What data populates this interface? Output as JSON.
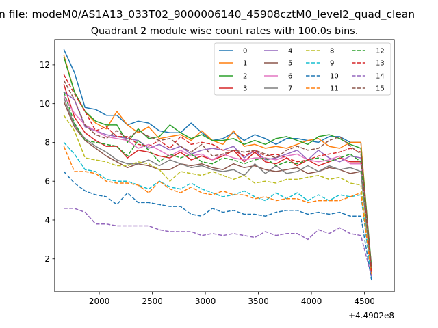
{
  "chart_data": {
    "type": "line",
    "suptitle": "n file: modeM0/AS1A13_033T02_9000006140_45908cztM0_level2_quad_clean",
    "title": "Quadrant 2 module wise count rates with 100.0s bins.",
    "xlabel": "",
    "ylabel": "",
    "offset_label": "+4.4902e8",
    "xlim": [
      1580,
      4780
    ],
    "ylim": [
      0.3,
      13.3
    ],
    "xticks": [
      2000,
      2500,
      3000,
      3500,
      4000,
      4500
    ],
    "yticks": [
      2,
      4,
      6,
      8,
      10,
      12
    ],
    "legend": "top-right",
    "x": [
      1666,
      1766,
      1866,
      1966,
      2066,
      2166,
      2266,
      2366,
      2466,
      2566,
      2666,
      2766,
      2866,
      2966,
      3066,
      3166,
      3266,
      3366,
      3466,
      3566,
      3666,
      3766,
      3866,
      3966,
      4066,
      4166,
      4266,
      4366,
      4466,
      4566
    ],
    "series": [
      {
        "name": "0",
        "color": "#1f77b4",
        "dash": "solid",
        "values": [
          12.8,
          11.6,
          9.8,
          9.7,
          9.4,
          9.4,
          8.9,
          9.1,
          9.0,
          8.6,
          8.5,
          8.5,
          9.0,
          8.5,
          8.1,
          8.2,
          8.5,
          8.1,
          8.4,
          8.2,
          7.9,
          8.2,
          8.2,
          8.1,
          8.0,
          8.3,
          8.3,
          8.0,
          8.0,
          1.0
        ]
      },
      {
        "name": "1",
        "color": "#ff7f0e",
        "dash": "solid",
        "values": [
          12.5,
          10.6,
          9.6,
          9.0,
          8.7,
          9.6,
          8.9,
          8.5,
          8.8,
          8.2,
          8.3,
          8.4,
          8.1,
          8.6,
          8.1,
          7.9,
          8.6,
          7.8,
          7.9,
          7.7,
          7.8,
          7.7,
          7.9,
          8.1,
          8.2,
          7.8,
          7.7,
          8.0,
          8.0,
          1.3
        ]
      },
      {
        "name": "2",
        "color": "#2ca02c",
        "dash": "solid",
        "values": [
          12.4,
          10.6,
          9.6,
          9.1,
          8.9,
          8.9,
          8.0,
          8.7,
          8.2,
          8.3,
          8.9,
          8.5,
          8.2,
          8.4,
          8.1,
          8.1,
          8.2,
          7.9,
          8.1,
          7.9,
          8.2,
          8.3,
          8.1,
          7.9,
          8.3,
          8.4,
          8.2,
          7.9,
          7.7,
          1.6
        ]
      },
      {
        "name": "3",
        "color": "#d62728",
        "dash": "solid",
        "values": [
          11.0,
          9.3,
          8.5,
          8.1,
          7.8,
          7.8,
          7.2,
          7.6,
          7.5,
          7.3,
          7.2,
          7.5,
          7.1,
          7.3,
          7.1,
          7.3,
          7.6,
          7.0,
          7.5,
          7.0,
          6.9,
          7.2,
          6.8,
          7.1,
          6.8,
          7.0,
          7.2,
          7.0,
          7.0,
          1.2
        ]
      },
      {
        "name": "4",
        "color": "#9467bd",
        "dash": "solid",
        "values": [
          10.6,
          10.2,
          8.8,
          8.6,
          8.4,
          8.3,
          8.2,
          8.1,
          7.7,
          7.9,
          7.6,
          7.8,
          7.4,
          7.6,
          7.7,
          7.6,
          7.8,
          7.2,
          7.6,
          7.1,
          7.2,
          7.4,
          7.6,
          7.1,
          7.6,
          7.2,
          7.0,
          7.3,
          7.2,
          1.1
        ]
      },
      {
        "name": "5",
        "color": "#8c564b",
        "dash": "solid",
        "values": [
          10.1,
          8.8,
          8.1,
          7.7,
          7.3,
          7.0,
          6.7,
          6.9,
          6.8,
          6.6,
          6.6,
          6.9,
          6.8,
          6.9,
          6.7,
          6.6,
          6.9,
          6.7,
          6.8,
          6.6,
          6.5,
          6.6,
          6.7,
          6.4,
          6.5,
          6.7,
          6.6,
          6.4,
          6.5,
          1.3
        ]
      },
      {
        "name": "6",
        "color": "#e377c2",
        "dash": "solid",
        "values": [
          10.4,
          9.5,
          8.9,
          8.6,
          8.3,
          8.2,
          8.1,
          7.7,
          7.9,
          7.6,
          7.3,
          7.6,
          7.3,
          7.4,
          7.1,
          7.4,
          7.2,
          7.1,
          7.2,
          7.2,
          7.1,
          7.3,
          7.4,
          7.1,
          7.0,
          7.1,
          7.3,
          6.9,
          6.9,
          1.1
        ]
      },
      {
        "name": "7",
        "color": "#7f7f7f",
        "dash": "solid",
        "values": [
          10.3,
          8.9,
          8.2,
          7.8,
          7.5,
          7.1,
          6.9,
          6.9,
          7.1,
          6.8,
          7.1,
          6.9,
          6.7,
          6.8,
          6.6,
          6.5,
          6.6,
          6.3,
          6.9,
          6.4,
          6.8,
          6.4,
          6.5,
          6.8,
          6.5,
          6.8,
          6.6,
          6.7,
          6.5,
          1.2
        ]
      },
      {
        "name": "8",
        "color": "#bcbd22",
        "dash": "dashed",
        "values": [
          9.4,
          8.6,
          7.2,
          7.1,
          7.0,
          6.8,
          6.8,
          7.0,
          6.9,
          6.6,
          6.0,
          6.5,
          6.4,
          6.3,
          6.5,
          6.3,
          6.1,
          6.3,
          5.9,
          6.0,
          5.9,
          6.1,
          6.1,
          6.2,
          6.3,
          6.1,
          6.2,
          5.9,
          5.8,
          1.0
        ]
      },
      {
        "name": "9",
        "color": "#17becf",
        "dash": "dashed",
        "values": [
          8.0,
          7.4,
          6.6,
          6.5,
          6.1,
          6.0,
          6.0,
          5.8,
          5.6,
          6.0,
          5.7,
          5.6,
          5.9,
          5.6,
          5.4,
          5.2,
          5.3,
          5.5,
          5.2,
          5.0,
          5.4,
          5.1,
          5.4,
          5.0,
          5.3,
          5.0,
          5.3,
          5.2,
          5.3,
          1.0
        ]
      },
      {
        "name": "10",
        "color": "#1f77b4",
        "dash": "dashed",
        "values": [
          6.5,
          5.9,
          5.5,
          5.3,
          5.2,
          4.8,
          5.4,
          4.9,
          4.9,
          4.8,
          4.7,
          4.7,
          4.3,
          4.2,
          4.6,
          4.4,
          4.5,
          4.3,
          4.3,
          4.2,
          4.4,
          4.5,
          4.5,
          4.3,
          4.4,
          4.3,
          4.4,
          4.2,
          4.2,
          0.9
        ]
      },
      {
        "name": "11",
        "color": "#ff7f0e",
        "dash": "dashed",
        "values": [
          7.8,
          6.5,
          6.5,
          6.4,
          6.0,
          5.9,
          5.9,
          5.8,
          5.4,
          6.0,
          5.6,
          5.4,
          5.7,
          5.4,
          5.3,
          5.5,
          5.3,
          5.3,
          5.1,
          5.2,
          5.0,
          5.1,
          5.1,
          4.9,
          5.0,
          5.0,
          5.0,
          5.2,
          5.4,
          1.2
        ]
      },
      {
        "name": "12",
        "color": "#2ca02c",
        "dash": "dashed",
        "values": [
          10.6,
          9.0,
          8.1,
          8.0,
          7.9,
          7.8,
          7.3,
          8.1,
          7.6,
          7.0,
          7.4,
          7.2,
          7.4,
          7.0,
          6.9,
          7.2,
          7.1,
          6.9,
          7.1,
          7.2,
          6.8,
          7.0,
          6.9,
          7.1,
          7.2,
          7.0,
          7.2,
          7.4,
          7.0,
          1.4
        ]
      },
      {
        "name": "13",
        "color": "#d62728",
        "dash": "dashed",
        "values": [
          11.5,
          10.5,
          9.6,
          8.6,
          8.8,
          8.3,
          8.3,
          7.9,
          7.8,
          8.1,
          7.7,
          8.3,
          7.9,
          8.0,
          7.9,
          7.6,
          7.6,
          7.3,
          7.6,
          7.3,
          7.4,
          7.2,
          7.0,
          7.1,
          7.3,
          7.4,
          7.5,
          7.7,
          7.5,
          1.3
        ]
      },
      {
        "name": "14",
        "color": "#9467bd",
        "dash": "dashed",
        "values": [
          4.6,
          4.6,
          4.4,
          3.8,
          3.8,
          3.7,
          3.7,
          3.7,
          3.7,
          3.5,
          3.4,
          3.4,
          3.4,
          3.2,
          3.3,
          3.2,
          3.3,
          3.2,
          3.1,
          3.4,
          3.2,
          3.3,
          3.3,
          3.0,
          3.5,
          3.3,
          3.6,
          3.3,
          3.2,
          1.1
        ]
      },
      {
        "name": "15",
        "color": "#8c564b",
        "dash": "dashed",
        "values": [
          11.2,
          10.2,
          8.9,
          8.4,
          8.2,
          8.6,
          8.2,
          8.6,
          8.3,
          8.1,
          8.2,
          7.8,
          7.5,
          7.9,
          7.3,
          7.4,
          7.6,
          7.5,
          7.6,
          7.4,
          7.2,
          7.6,
          7.8,
          7.6,
          7.7,
          8.1,
          8.3,
          7.8,
          7.4,
          1.6
        ]
      }
    ]
  }
}
